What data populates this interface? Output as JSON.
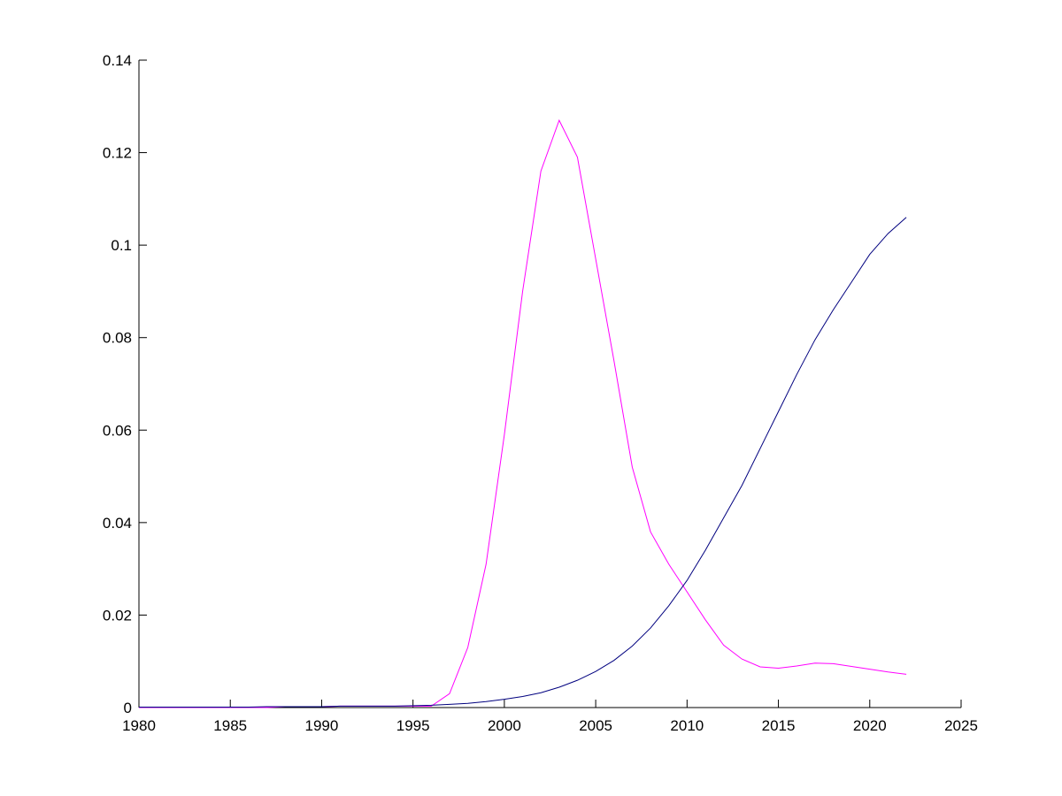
{
  "chart_data": {
    "type": "line",
    "x": [
      1980,
      1981,
      1982,
      1983,
      1984,
      1985,
      1986,
      1987,
      1988,
      1989,
      1990,
      1991,
      1992,
      1993,
      1994,
      1995,
      1996,
      1997,
      1998,
      1999,
      2000,
      2001,
      2002,
      2003,
      2004,
      2005,
      2006,
      2007,
      2008,
      2009,
      2010,
      2011,
      2012,
      2013,
      2014,
      2015,
      2016,
      2017,
      2018,
      2019,
      2020,
      2021,
      2022
    ],
    "series": [
      {
        "color": "#ff00ff",
        "values": [
          0,
          0,
          0,
          0,
          0,
          0,
          0,
          0,
          0.0002,
          0.0002,
          0.0002,
          0.0003,
          0.0003,
          0.0003,
          0.0003,
          0.0003,
          0.0003,
          0.003,
          0.013,
          0.031,
          0.059,
          0.09,
          0.116,
          0.127,
          0.119,
          0.097,
          0.075,
          0.052,
          0.038,
          0.031,
          0.025,
          0.019,
          0.0135,
          0.0105,
          0.0088,
          0.0085,
          0.009,
          0.0096,
          0.0095,
          0.0089,
          0.0083,
          0.0077,
          0.0072
        ]
      },
      {
        "color": "#00007f",
        "values": [
          0.0001,
          0.0001,
          0.0001,
          0.0001,
          0.0001,
          0.0001,
          0.0001,
          0.0002,
          0.0002,
          0.0002,
          0.0002,
          0.0003,
          0.0003,
          0.0003,
          0.0003,
          0.0004,
          0.0005,
          0.0007,
          0.0009,
          0.0013,
          0.0018,
          0.0024,
          0.0032,
          0.0044,
          0.0059,
          0.0078,
          0.0102,
          0.0133,
          0.0172,
          0.022,
          0.0275,
          0.034,
          0.041,
          0.048,
          0.056,
          0.064,
          0.072,
          0.0795,
          0.086,
          0.092,
          0.098,
          0.1025,
          0.106
        ]
      }
    ],
    "xlim": [
      1980,
      2025
    ],
    "xticks": [
      1980,
      1985,
      1990,
      1995,
      2000,
      2005,
      2010,
      2015,
      2020,
      2025
    ],
    "ylim": [
      0,
      0.14
    ],
    "yticks": [
      0,
      0.02,
      0.04,
      0.06,
      0.08,
      0.1,
      0.12,
      0.14
    ]
  }
}
